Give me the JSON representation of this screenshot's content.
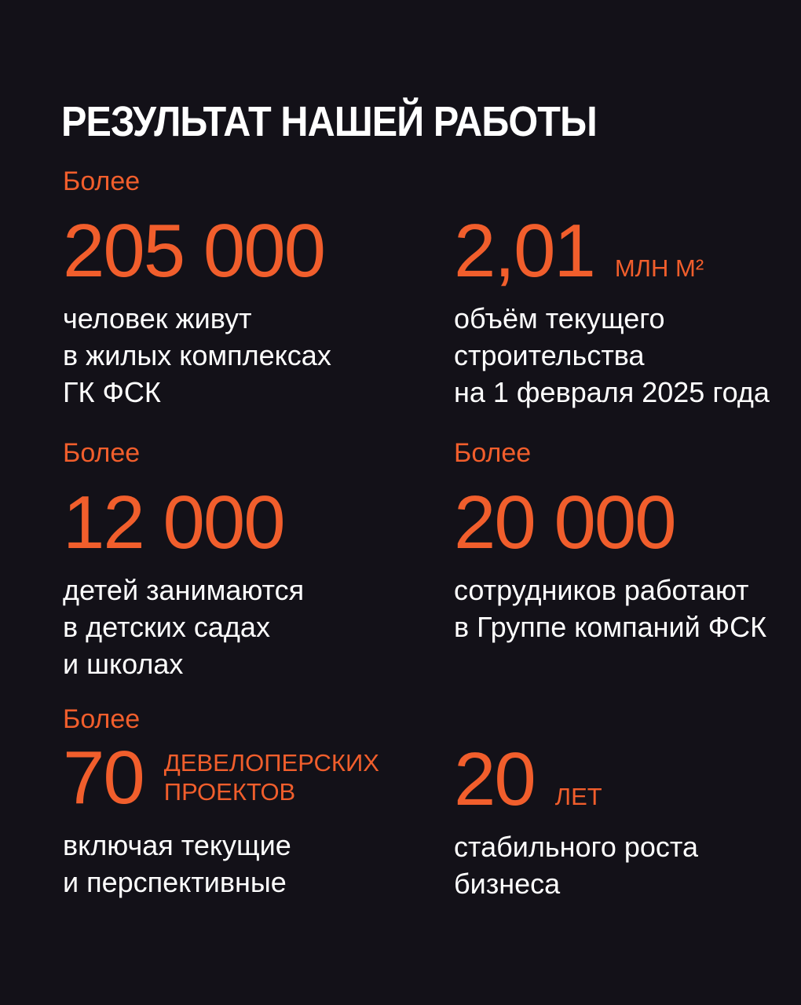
{
  "colors": {
    "background": "#131118",
    "accent_orange": "#F15E2C",
    "text_white": "#FFFFFF"
  },
  "header": {
    "title": "РЕЗУЛЬТАТ НАШЕЙ РАБОТЫ"
  },
  "stats": [
    {
      "id": "residents",
      "label": "Более",
      "value": "205 000",
      "description": "человек живут\nв жилых комплексах\nГК ФСК"
    },
    {
      "id": "construction",
      "value": "2,01",
      "unit": "МЛН М²",
      "description": "объём текущего\nстроительства\nна 1 февраля 2025 года"
    },
    {
      "id": "children",
      "label": "Более",
      "value": "12 000",
      "description": "детей занимаются\nв детских садах\nи школах"
    },
    {
      "id": "employees",
      "label": "Более",
      "value": "20 000",
      "description": "сотрудников работают\nв Группе компаний ФСК"
    },
    {
      "id": "projects",
      "label": "Более",
      "value": "70",
      "unit": "ДЕВЕЛОПЕРСКИХ\nПРОЕКТОВ",
      "description": "включая текущие\nи перспективные"
    },
    {
      "id": "years",
      "value": "20",
      "unit": "ЛЕТ",
      "description": "стабильного роста\nбизнеса"
    }
  ]
}
